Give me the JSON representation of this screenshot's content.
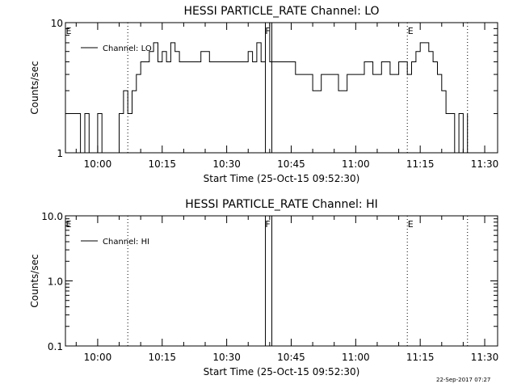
{
  "footer": {
    "timestamp": "22-Sep-2017 07:27"
  },
  "chart_data": [
    {
      "type": "line",
      "title": "HESSI PARTICLE_RATE Channel: LO",
      "xlabel": "Start Time (25-Oct-15 09:52:30)",
      "ylabel": "Counts/sec",
      "yscale": "log",
      "ylim": [
        1,
        10
      ],
      "yticks": [
        1,
        10
      ],
      "ytick_labels": [
        "1",
        "10"
      ],
      "xlim": [
        "09:52:30",
        "11:33:00"
      ],
      "xticks": [
        "10:00",
        "10:15",
        "10:30",
        "10:45",
        "11:00",
        "11:15",
        "11:30"
      ],
      "grid": false,
      "legend": "top-left",
      "series": [
        {
          "name": "Channel: LO",
          "x": [
            "09:52:30",
            "09:54:00",
            "09:55:00",
            "09:56:00",
            "09:57:00",
            "09:58:00",
            "09:59:00",
            "10:00:00",
            "10:01:00",
            "10:02:00",
            "10:03:00",
            "10:04:00",
            "10:05:00",
            "10:06:00",
            "10:07:00",
            "10:08:00",
            "10:09:00",
            "10:10:00",
            "10:11:00",
            "10:12:00",
            "10:13:00",
            "10:14:00",
            "10:15:00",
            "10:16:00",
            "10:17:00",
            "10:18:00",
            "10:19:00",
            "10:20:00",
            "10:22:00",
            "10:24:00",
            "10:26:00",
            "10:28:00",
            "10:30:00",
            "10:32:00",
            "10:34:00",
            "10:35:00",
            "10:36:00",
            "10:37:00",
            "10:38:00",
            "10:39:00",
            "10:40:00",
            "10:42:00",
            "10:44:00",
            "10:46:00",
            "10:48:00",
            "10:50:00",
            "10:52:00",
            "10:54:00",
            "10:56:00",
            "10:58:00",
            "11:00:00",
            "11:02:00",
            "11:04:00",
            "11:06:00",
            "11:08:00",
            "11:10:00",
            "11:12:00",
            "11:13:00",
            "11:14:00",
            "11:15:00",
            "11:16:00",
            "11:17:00",
            "11:18:00",
            "11:19:00",
            "11:20:00",
            "11:21:00",
            "11:22:00",
            "11:23:00",
            "11:24:00",
            "11:25:00",
            "11:26:00"
          ],
          "values": [
            2,
            2,
            2,
            1,
            2,
            1,
            1,
            2,
            1,
            1,
            1,
            1,
            2,
            3,
            2,
            3,
            4,
            5,
            5,
            6,
            7,
            5,
            6,
            5,
            7,
            6,
            5,
            5,
            5,
            6,
            5,
            5,
            5,
            5,
            5,
            6,
            5,
            7,
            5,
            10,
            5,
            5,
            5,
            4,
            4,
            3,
            4,
            4,
            3,
            4,
            4,
            5,
            4,
            5,
            4,
            5,
            4,
            5,
            6,
            7,
            7,
            6,
            5,
            4,
            3,
            2,
            2,
            1,
            2,
            1,
            2
          ]
        }
      ],
      "annotations": {
        "marker_labels": [
          "E",
          "F",
          "E"
        ],
        "dotted_lines": [
          "10:07:00",
          "11:12:00",
          "11:26:00"
        ],
        "solid_lines": [
          "10:39:00",
          "10:40:30"
        ]
      }
    },
    {
      "type": "line",
      "title": "HESSI PARTICLE_RATE Channel: HI",
      "xlabel": "Start Time (25-Oct-15 09:52:30)",
      "ylabel": "Counts/sec",
      "yscale": "log",
      "ylim": [
        0.1,
        10
      ],
      "yticks": [
        0.1,
        1,
        10
      ],
      "ytick_labels": [
        "0.1",
        "1.0",
        "10.0"
      ],
      "xlim": [
        "09:52:30",
        "11:33:00"
      ],
      "xticks": [
        "10:00",
        "10:15",
        "10:30",
        "10:45",
        "11:00",
        "11:15",
        "11:30"
      ],
      "grid": false,
      "legend": "top-left",
      "series": [
        {
          "name": "Channel: HI",
          "x": [],
          "values": []
        }
      ],
      "annotations": {
        "marker_labels": [
          "E",
          "F",
          "E"
        ],
        "dotted_lines": [
          "10:07:00",
          "11:12:00",
          "11:26:00"
        ],
        "solid_lines": [
          "10:39:00",
          "10:40:30"
        ]
      }
    }
  ]
}
